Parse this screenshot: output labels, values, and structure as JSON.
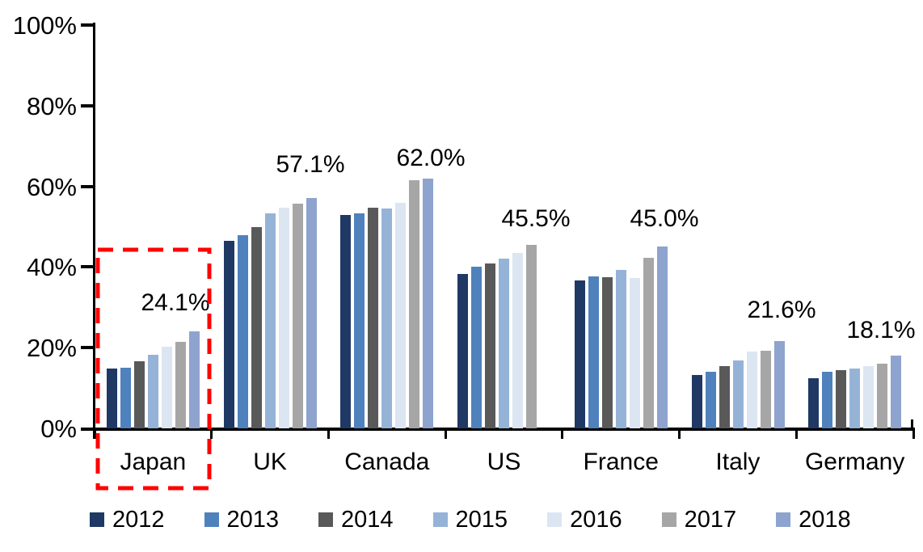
{
  "chart_data": {
    "type": "bar",
    "title": "",
    "xlabel": "",
    "ylabel": "",
    "ylim": [
      0,
      100
    ],
    "grid": false,
    "legend_position": "bottom",
    "y_tick_labels": [
      "0%",
      "20%",
      "40%",
      "60%",
      "80%",
      "100%"
    ],
    "y_tick_values": [
      0,
      20,
      40,
      60,
      80,
      100
    ],
    "categories": [
      "Japan",
      "UK",
      "Canada",
      "US",
      "France",
      "Italy",
      "Germany"
    ],
    "series": [
      {
        "name": "2012",
        "color": "#1F3864",
        "values": [
          14.8,
          46.4,
          52.9,
          38.2,
          36.6,
          13.3,
          12.5
        ]
      },
      {
        "name": "2013",
        "color": "#4F81BD",
        "values": [
          15.0,
          47.8,
          53.3,
          40.0,
          37.6,
          14.1,
          14.0
        ]
      },
      {
        "name": "2014",
        "color": "#595959",
        "values": [
          16.7,
          50.0,
          54.7,
          40.8,
          37.5,
          15.4,
          14.4
        ]
      },
      {
        "name": "2015",
        "color": "#95B3D7",
        "values": [
          18.3,
          53.3,
          54.5,
          42.0,
          39.2,
          16.8,
          14.8
        ]
      },
      {
        "name": "2016",
        "color": "#DCE6F2",
        "values": [
          20.2,
          54.8,
          56.0,
          43.4,
          37.3,
          19.0,
          15.4
        ]
      },
      {
        "name": "2017",
        "color": "#A6A6A6",
        "values": [
          21.4,
          55.8,
          61.5,
          45.5,
          42.3,
          19.2,
          16.1
        ]
      },
      {
        "name": "2018",
        "color": "#8EA3CE",
        "values": [
          24.1,
          57.1,
          62.0,
          null,
          45.0,
          21.6,
          18.1
        ]
      }
    ],
    "data_labels": [
      "24.1%",
      "57.1%",
      "62.0%",
      "45.5%",
      "45.0%",
      "21.6%",
      "18.1%"
    ],
    "annotations": {
      "highlight": {
        "category": "Japan",
        "style": "red-dashed-rectangle",
        "color": "#FF0000"
      }
    }
  }
}
